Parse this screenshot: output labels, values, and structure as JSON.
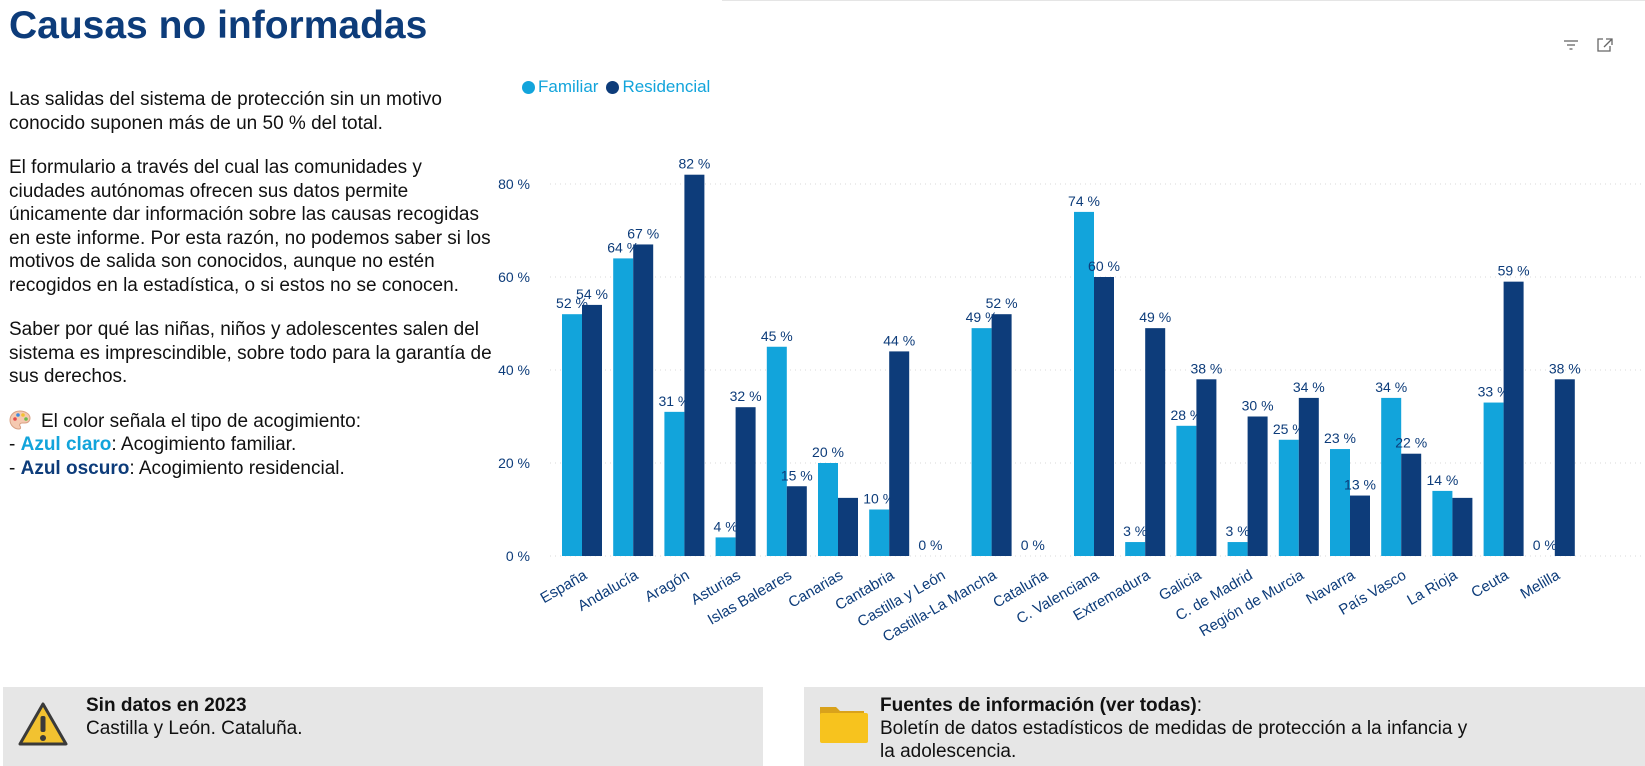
{
  "page": {
    "title": "Causas no informadas",
    "intro_paragraphs": [
      "Las salidas del sistema de protección sin un motivo conocido suponen más de un 50 % del total.",
      "El formulario a través del cual las comunidades y ciudades autónomas ofrecen sus datos permite únicamente dar información sobre las causas recogidas en este informe. Por esta razón, no podemos saber si los motivos de salida son conocidos, aunque no estén recogidos en la estadística, o si estos no se conocen.",
      "Saber por qué las niñas, niños y adolescentes salen del sistema es imprescindible, sobre todo para la garantía de sus derechos."
    ],
    "color_note": {
      "heading": "El color señala el tipo de acogimiento:",
      "light_prefix": "- ",
      "light_label": "Azul claro",
      "light_desc": ": Acogimiento familiar.",
      "dark_prefix": "- ",
      "dark_label": "Azul oscuro",
      "dark_desc": ": Acogimiento residencial."
    }
  },
  "colors": {
    "familiar": "#12a4db",
    "residencial": "#0d3c7a",
    "title": "#0d3c7a"
  },
  "icons": {
    "palette": "palette-icon",
    "filter": "filter-icon",
    "focus": "focus-mode-icon",
    "warning": "warning-icon",
    "folder": "folder-icon"
  },
  "chart_data": {
    "type": "bar",
    "title": "",
    "xlabel": "",
    "ylabel": "",
    "ylim": [
      0,
      85
    ],
    "yticks": [
      0,
      20,
      40,
      60,
      80
    ],
    "ytick_labels": [
      "0 %",
      "20 %",
      "40 %",
      "60 %",
      "80 %"
    ],
    "grid": true,
    "legend_position": "top-left",
    "categories": [
      "España",
      "Andalucía",
      "Aragón",
      "Asturias",
      "Islas Baleares",
      "Canarias",
      "Cantabria",
      "Castilla y León",
      "Castilla-La Mancha",
      "Cataluña",
      "C. Valenciana",
      "Extremadura",
      "Galicia",
      "C. de Madrid",
      "Región de Murcia",
      "Navarra",
      "País Vasco",
      "La Rioja",
      "Ceuta",
      "Melilla"
    ],
    "series": [
      {
        "name": "Familiar",
        "values": [
          52,
          64,
          31,
          4,
          45,
          20,
          10,
          0,
          49,
          0,
          74,
          3,
          28,
          3,
          25,
          23,
          34,
          14,
          33,
          0
        ],
        "labels": [
          "52 %",
          "64 %",
          "31 %",
          "4 %",
          "45 %",
          "20 %",
          "10 %",
          "0 %",
          "49 %",
          "0 %",
          "74 %",
          "3 %",
          "28 %",
          "3 %",
          "25 %",
          "23 %",
          "34 %",
          "14 %",
          "33 %",
          "0 %"
        ]
      },
      {
        "name": "Residencial",
        "values": [
          54,
          67,
          82,
          32,
          15,
          12.5,
          44,
          null,
          52,
          null,
          60,
          49,
          38,
          30,
          34,
          13,
          22,
          12.5,
          59,
          38
        ],
        "labels": [
          "54 %",
          "67 %",
          "82 %",
          "32 %",
          "15 %",
          "",
          "44 %",
          "",
          "52 %",
          "",
          "60 %",
          "49 %",
          "38 %",
          "30 %",
          "34 %",
          "13 %",
          "22 %",
          "",
          "59 %",
          "38 %"
        ]
      }
    ]
  },
  "notices": {
    "missing": {
      "title": "Sin datos en 2023",
      "body": "Castilla y León. Cataluña."
    },
    "sources": {
      "title": "Fuentes de información (ver todas)",
      "colon": ":",
      "body_line1": "Boletín de datos estadísticos de medidas de protección a la infancia y",
      "body_line2": "la adolescencia."
    }
  }
}
